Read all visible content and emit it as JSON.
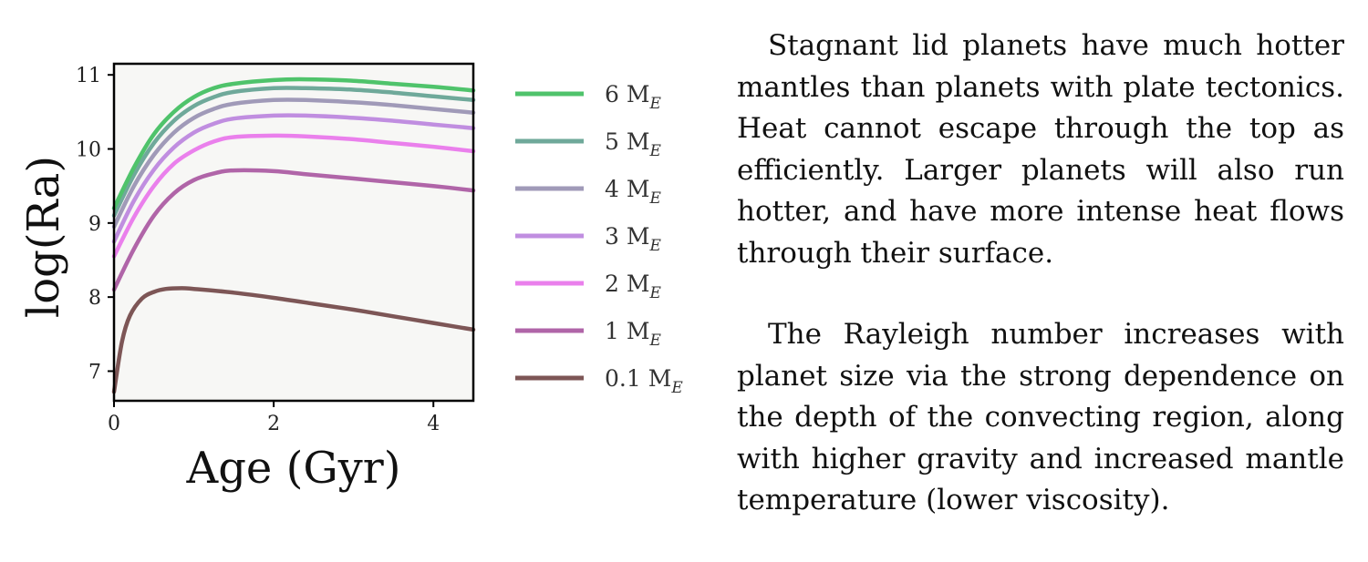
{
  "chart_data": {
    "type": "line",
    "xlabel": "Age (Gyr)",
    "ylabel": "log(Ra)",
    "xlim": [
      0,
      4.5
    ],
    "ylim": [
      6.6,
      11.15
    ],
    "xticks": [
      "0",
      "2",
      "4"
    ],
    "yticks": [
      "7",
      "8",
      "9",
      "10",
      "11"
    ],
    "grid": false,
    "legend_position": "right",
    "plot_background": "#f7f7f5",
    "series": [
      {
        "name": "6 M",
        "sub": "E",
        "color": "#4fc36b",
        "x": [
          0,
          0.25,
          0.5,
          0.75,
          1.0,
          1.25,
          1.5,
          2.0,
          2.4,
          3.0,
          3.5,
          4.0,
          4.5
        ],
        "y": [
          9.2,
          9.75,
          10.2,
          10.5,
          10.7,
          10.82,
          10.88,
          10.93,
          10.94,
          10.92,
          10.88,
          10.84,
          10.79
        ]
      },
      {
        "name": "5 M",
        "sub": "E",
        "color": "#6fa99a",
        "x": [
          0,
          0.25,
          0.5,
          0.75,
          1.0,
          1.25,
          1.5,
          2.0,
          2.4,
          3.0,
          3.5,
          4.0,
          4.5
        ],
        "y": [
          9.1,
          9.65,
          10.08,
          10.38,
          10.58,
          10.7,
          10.77,
          10.82,
          10.82,
          10.8,
          10.76,
          10.71,
          10.66
        ]
      },
      {
        "name": "4 M",
        "sub": "E",
        "color": "#a09ab8",
        "x": [
          0,
          0.25,
          0.5,
          0.75,
          1.0,
          1.25,
          1.5,
          2.0,
          2.4,
          3.0,
          3.5,
          4.0,
          4.5
        ],
        "y": [
          8.95,
          9.5,
          9.92,
          10.22,
          10.42,
          10.54,
          10.61,
          10.66,
          10.66,
          10.63,
          10.59,
          10.54,
          10.49
        ]
      },
      {
        "name": "3 M",
        "sub": "E",
        "color": "#c08ee0",
        "x": [
          0,
          0.25,
          0.5,
          0.75,
          1.0,
          1.25,
          1.5,
          2.0,
          2.4,
          3.0,
          3.5,
          4.0,
          4.5
        ],
        "y": [
          8.75,
          9.3,
          9.72,
          10.02,
          10.22,
          10.34,
          10.41,
          10.45,
          10.45,
          10.42,
          10.38,
          10.33,
          10.28
        ]
      },
      {
        "name": "2 M",
        "sub": "E",
        "color": "#ea80ec",
        "x": [
          0,
          0.25,
          0.5,
          0.75,
          1.0,
          1.25,
          1.5,
          2.0,
          2.4,
          3.0,
          3.5,
          4.0,
          4.5
        ],
        "y": [
          8.55,
          9.08,
          9.5,
          9.8,
          9.98,
          10.1,
          10.16,
          10.18,
          10.17,
          10.13,
          10.08,
          10.03,
          9.97
        ]
      },
      {
        "name": "1 M",
        "sub": "E",
        "color": "#b065a8",
        "x": [
          0,
          0.25,
          0.5,
          0.75,
          1.0,
          1.25,
          1.5,
          2.0,
          2.4,
          3.0,
          3.5,
          4.0,
          4.5
        ],
        "y": [
          8.1,
          8.65,
          9.1,
          9.4,
          9.58,
          9.67,
          9.71,
          9.7,
          9.66,
          9.6,
          9.55,
          9.5,
          9.44
        ]
      },
      {
        "name": "0.1 M",
        "sub": "E",
        "color": "#7d5656",
        "x": [
          0,
          0.1,
          0.2,
          0.35,
          0.5,
          0.65,
          0.85,
          1.0,
          1.5,
          2.0,
          2.5,
          3.0,
          3.5,
          4.0,
          4.5
        ],
        "y": [
          6.72,
          7.4,
          7.75,
          7.98,
          8.07,
          8.11,
          8.12,
          8.11,
          8.06,
          7.99,
          7.91,
          7.83,
          7.74,
          7.65,
          7.56
        ]
      }
    ]
  },
  "text": {
    "paragraph1": "Stagnant lid planets have much hotter mantles than planets with plate tectonics. Heat cannot escape through the top as efficiently. Larger planets will also run hotter, and have more intense heat flows through their surface.",
    "paragraph2": "The Rayleigh number increases with planet size via the strong dependence on the depth of the convecting region, along with higher gravity and increased mantle temperature (lower viscosity)."
  }
}
